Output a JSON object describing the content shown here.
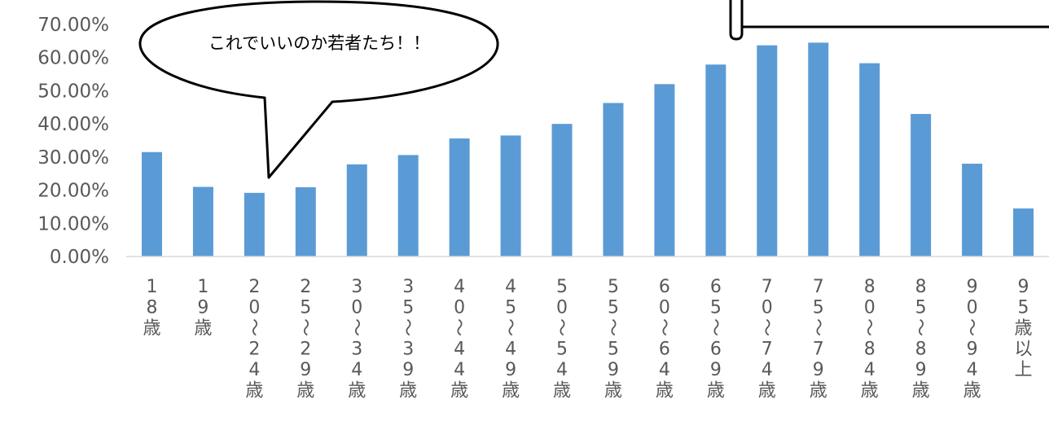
{
  "chart_data": {
    "type": "bar",
    "categories": [
      "18歳",
      "19歳",
      "20～24歳",
      "25～29歳",
      "30～34歳",
      "35～39歳",
      "40～44歳",
      "45～49歳",
      "50～54歳",
      "55～59歳",
      "60～64歳",
      "65～69歳",
      "70～74歳",
      "75～79歳",
      "80～84歳",
      "85～89歳",
      "90～94歳",
      "95歳以上"
    ],
    "category_lines": [
      [
        "1",
        "8",
        "歳"
      ],
      [
        "1",
        "9",
        "歳"
      ],
      [
        "2",
        "0",
        "～",
        "2",
        "4",
        "歳"
      ],
      [
        "2",
        "5",
        "～",
        "2",
        "9",
        "歳"
      ],
      [
        "3",
        "0",
        "～",
        "3",
        "4",
        "歳"
      ],
      [
        "3",
        "5",
        "～",
        "3",
        "9",
        "歳"
      ],
      [
        "4",
        "0",
        "～",
        "4",
        "4",
        "歳"
      ],
      [
        "4",
        "5",
        "～",
        "4",
        "9",
        "歳"
      ],
      [
        "5",
        "0",
        "～",
        "5",
        "4",
        "歳"
      ],
      [
        "5",
        "5",
        "～",
        "5",
        "9",
        "歳"
      ],
      [
        "6",
        "0",
        "～",
        "6",
        "4",
        "歳"
      ],
      [
        "6",
        "5",
        "～",
        "6",
        "9",
        "歳"
      ],
      [
        "7",
        "0",
        "～",
        "7",
        "4",
        "歳"
      ],
      [
        "7",
        "5",
        "～",
        "7",
        "9",
        "歳"
      ],
      [
        "8",
        "0",
        "～",
        "8",
        "4",
        "歳"
      ],
      [
        "8",
        "5",
        "～",
        "8",
        "9",
        "歳"
      ],
      [
        "9",
        "0",
        "～",
        "9",
        "4",
        "歳"
      ],
      [
        "9",
        "5",
        "歳",
        "以",
        "上"
      ]
    ],
    "values": [
      31.5,
      21.0,
      19.2,
      20.9,
      27.8,
      30.6,
      35.6,
      36.5,
      40.0,
      46.3,
      52.0,
      57.9,
      63.7,
      64.5,
      58.3,
      43.0,
      28.0,
      14.5
    ],
    "ylim": [
      0,
      70
    ],
    "yticks": [
      "0.00%",
      "10.00%",
      "20.00%",
      "30.00%",
      "40.00%",
      "50.00%",
      "60.00%",
      "70.00%"
    ],
    "bar_color": "#5B9BD5",
    "title": "",
    "xlabel": "",
    "ylabel": "",
    "grid": false,
    "legend": "none"
  },
  "annotation": {
    "speech_bubble_text": "これでいいのか若者たち！！"
  }
}
